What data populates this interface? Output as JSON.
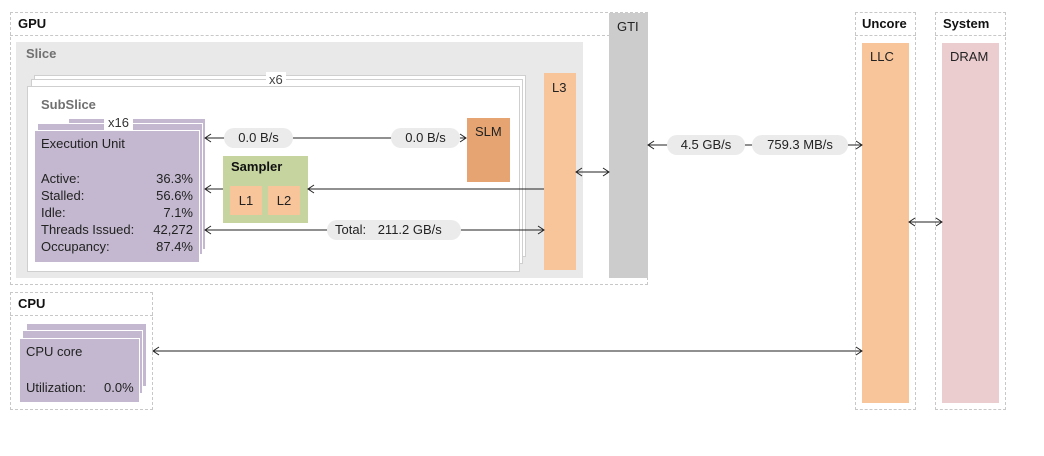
{
  "gpu": {
    "label": "GPU",
    "slice": {
      "label": "Slice",
      "count": "x6",
      "subslice": {
        "label": "SubSlice",
        "eu": {
          "count": "x16",
          "label": "Execution Unit",
          "rows": [
            {
              "key": "Active:",
              "value": "36.3%"
            },
            {
              "key": "Stalled:",
              "value": "56.6%"
            },
            {
              "key": "Idle:",
              "value": "7.1%"
            },
            {
              "key": "Threads Issued:",
              "value": "42,272"
            },
            {
              "key": "Occupancy:",
              "value": "87.4%"
            }
          ]
        },
        "sampler": {
          "label": "Sampler",
          "l1": "L1",
          "l2": "L2"
        },
        "slm": "SLM",
        "slm_read": "0.0 B/s",
        "slm_write": "0.0 B/s",
        "total_label": "Total:",
        "total_value": "211.2 GB/s"
      },
      "l3": "L3"
    },
    "gti": "GTI"
  },
  "bandwidth": {
    "gti_in": "4.5 GB/s",
    "gti_out": "759.3 MB/s"
  },
  "uncore": {
    "label": "Uncore",
    "llc": "LLC"
  },
  "system": {
    "label": "System",
    "dram": "DRAM"
  },
  "cpu": {
    "label": "CPU",
    "core": "CPU core",
    "util_label": "Utilization:",
    "util_value": "0.0%"
  },
  "colors": {
    "eu": "#c3b8cf",
    "l3": "#f8c49a",
    "slm": "#e5a472",
    "sampler": "#c6d5a0",
    "gti": "#cccccc",
    "dram": "#ebcdcf",
    "slice_bg": "#e9e9e9"
  }
}
